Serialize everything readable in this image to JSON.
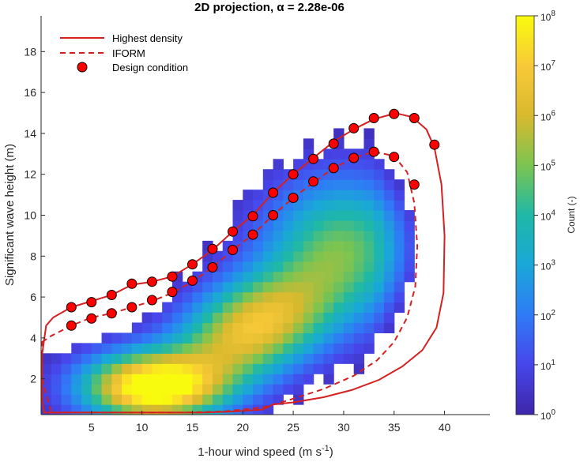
{
  "chart_data": {
    "type": "heatmap",
    "title_text": "2D projection, ",
    "title_alpha": "α = 2.28e-06",
    "xlabel": "1-hour wind speed (m s",
    "xlabel_sup": "-1",
    "xlabel_end": ")",
    "ylabel": "Significant wave height (m)",
    "xlim": [
      0.0,
      44.5
    ],
    "ylim": [
      0.25,
      19.75
    ],
    "xticks": [
      5,
      10,
      15,
      20,
      25,
      30,
      35,
      40
    ],
    "yticks": [
      2,
      4,
      6,
      8,
      10,
      12,
      14,
      16,
      18
    ],
    "colorbar": {
      "label": "Count (-)",
      "scale": "log",
      "range": [
        1,
        100000000
      ],
      "tick_base": "10",
      "tick_exponents": [
        "0",
        "1",
        "2",
        "3",
        "4",
        "5",
        "6",
        "7",
        "8"
      ],
      "colormap": "parula"
    },
    "histogram_bins": {
      "x_width": 1.0,
      "y_width": 0.5
    },
    "legend": {
      "placement": "top-left",
      "entries": [
        "Highest density",
        "IFORM",
        "Design condition"
      ]
    },
    "series": [
      {
        "name": "Highest density",
        "style": "solid",
        "color": "#d42020",
        "x": [
          0.1,
          0.5,
          1.2,
          3,
          5,
          7,
          9,
          11,
          13,
          15,
          17,
          19,
          21,
          23,
          25,
          27,
          29,
          31,
          33,
          34.5,
          35.5,
          36.8,
          38.2,
          39.0,
          39.7,
          40.0,
          39.9,
          39.2,
          37.8,
          35.8,
          33.5,
          30.8,
          28,
          25,
          23,
          22,
          19,
          16,
          12,
          8,
          4,
          2,
          0.3,
          0.1
        ],
        "y": [
          3.2,
          4.6,
          5.0,
          5.5,
          5.8,
          6.1,
          6.6,
          6.75,
          7.0,
          7.6,
          8.3,
          9.2,
          10.0,
          11.1,
          12.0,
          12.8,
          13.6,
          14.2,
          14.7,
          14.9,
          14.95,
          14.8,
          14.2,
          13.3,
          11.5,
          9.0,
          6.2,
          4.5,
          3.4,
          2.6,
          1.95,
          1.45,
          1.1,
          0.85,
          0.75,
          0.5,
          0.4,
          0.35,
          0.35,
          0.35,
          0.35,
          0.35,
          0.35,
          1.0
        ],
        "closed": true
      },
      {
        "name": "IFORM",
        "style": "dashed",
        "color": "#d42020",
        "x": [
          0.1,
          1,
          3,
          5,
          7,
          9,
          11,
          13,
          15,
          17,
          19,
          21,
          23,
          25,
          27,
          29,
          31,
          33,
          35,
          36.3,
          37.0,
          37.3,
          37.1,
          36.3,
          35.0,
          33.3,
          31.0,
          28.0,
          24.5,
          22,
          18,
          14,
          10,
          6,
          3,
          1,
          0.1
        ],
        "y": [
          3.8,
          4.1,
          4.6,
          5.0,
          5.2,
          5.5,
          5.8,
          6.2,
          6.75,
          7.45,
          8.3,
          9.05,
          10.0,
          10.85,
          11.6,
          12.3,
          12.8,
          13.1,
          12.9,
          12.1,
          10.6,
          8.5,
          6.5,
          5.0,
          3.8,
          2.9,
          2.15,
          1.5,
          0.95,
          0.6,
          0.4,
          0.35,
          0.35,
          0.35,
          0.35,
          0.35,
          2.0
        ],
        "closed": true
      },
      {
        "name": "Design condition",
        "style": "marker",
        "color": "#ff0000",
        "x": [
          3,
          5,
          7,
          9,
          11,
          13,
          15,
          17,
          19,
          21,
          23,
          25,
          27,
          29,
          31,
          33,
          35,
          37,
          39,
          3,
          5,
          7,
          9,
          11,
          13,
          15,
          17,
          19,
          21,
          23,
          25,
          27,
          29,
          31,
          33,
          35,
          37
        ],
        "y": [
          5.5,
          5.75,
          6.1,
          6.65,
          6.75,
          7.0,
          7.6,
          8.35,
          9.2,
          9.95,
          11.1,
          12.0,
          12.75,
          13.5,
          14.25,
          14.75,
          14.95,
          14.75,
          13.45,
          4.6,
          4.95,
          5.2,
          5.5,
          5.85,
          6.25,
          6.8,
          7.45,
          8.3,
          9.05,
          10.0,
          10.85,
          11.65,
          12.3,
          12.8,
          13.1,
          12.85,
          11.5
        ]
      }
    ]
  }
}
